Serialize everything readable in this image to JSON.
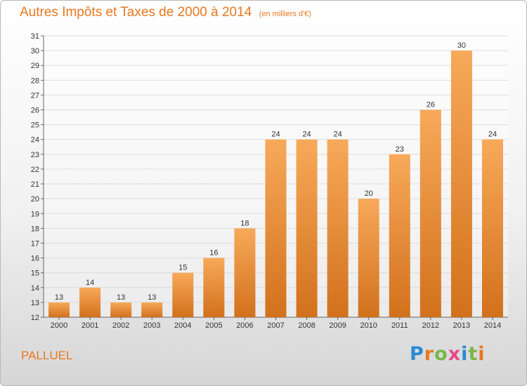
{
  "title": "Autres Impôts et Taxes de 2000 à 2014",
  "unit": "(en milliers d'€)",
  "place": "PALLUEL",
  "logo": {
    "letters": [
      "P",
      "r",
      "o",
      "x",
      "i",
      "t",
      "i"
    ],
    "colors": [
      "#2a8ad4",
      "#e8781e",
      "#7ab648",
      "#e84a8a",
      "#2a8ad4",
      "#7ab648",
      "#e8781e"
    ]
  },
  "colors": {
    "accent": "#e8781e",
    "bar_top": "#f7a95a",
    "bar_bottom": "#d2711c",
    "grid": "#dcdcdc"
  },
  "chart_data": {
    "type": "bar",
    "title": "Autres Impôts et Taxes de 2000 à 2014",
    "xlabel": "",
    "ylabel": "",
    "categories": [
      "2000",
      "2001",
      "2002",
      "2003",
      "2004",
      "2005",
      "2006",
      "2007",
      "2008",
      "2009",
      "2010",
      "2011",
      "2012",
      "2013",
      "2014"
    ],
    "values": [
      13,
      14,
      13,
      13,
      15,
      16,
      18,
      24,
      24,
      24,
      20,
      23,
      26,
      30,
      24
    ],
    "ylim": [
      12,
      31
    ],
    "yticks": [
      12,
      13,
      14,
      15,
      16,
      17,
      18,
      19,
      20,
      21,
      22,
      23,
      24,
      25,
      26,
      27,
      28,
      29,
      30,
      31
    ],
    "grid": true,
    "legend": "none"
  }
}
